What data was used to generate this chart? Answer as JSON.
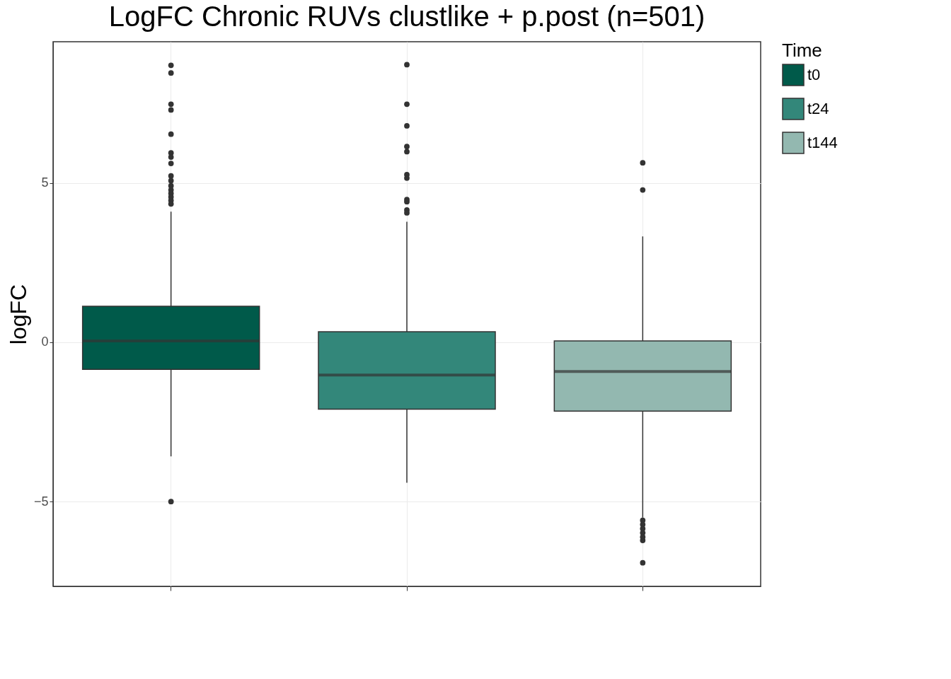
{
  "chart_data": {
    "type": "box",
    "title": "LogFC Chronic RUVs clustlike + p.post (n=501)",
    "ylabel": "logFC",
    "legend_title": "Time",
    "categories": [
      null,
      null,
      null
    ],
    "ylim": [
      -7.66,
      9.43
    ],
    "yticks": [
      -5,
      0,
      5
    ],
    "grid": true,
    "legend": "right",
    "tick_labels": "y",
    "marker": "circle",
    "series": [
      {
        "name": "t0",
        "color": "#005a4a",
        "boxes": [
          {
            "low": -3.58,
            "q1": -0.85,
            "median": 0.04,
            "q3": 1.13,
            "high": 4.1,
            "outliers": [
              8.69,
              8.45,
              7.47,
              7.29,
              6.53,
              5.94,
              5.81,
              5.61,
              5.22,
              5.07,
              4.91,
              4.78,
              4.67,
              4.56,
              4.45,
              4.34,
              -5.0
            ]
          },
          null,
          null
        ]
      },
      {
        "name": "t24",
        "color": "#33877a",
        "boxes": [
          null,
          {
            "low": -4.41,
            "q1": -2.1,
            "median": -1.03,
            "q3": 0.33,
            "high": 3.78,
            "outliers": [
              8.71,
              7.47,
              6.79,
              6.14,
              5.98,
              5.26,
              5.15,
              4.48,
              4.41,
              4.15,
              4.06
            ]
          },
          null
        ]
      },
      {
        "name": "t144",
        "color": "#93b8b0",
        "boxes": [
          null,
          null,
          {
            "low": -5.5,
            "q1": -2.16,
            "median": -0.92,
            "q3": 0.04,
            "high": 3.32,
            "outliers": [
              5.63,
              4.78,
              -5.59,
              -5.72,
              -5.85,
              -5.98,
              -6.11,
              -6.22,
              -6.92
            ]
          }
        ]
      }
    ]
  }
}
